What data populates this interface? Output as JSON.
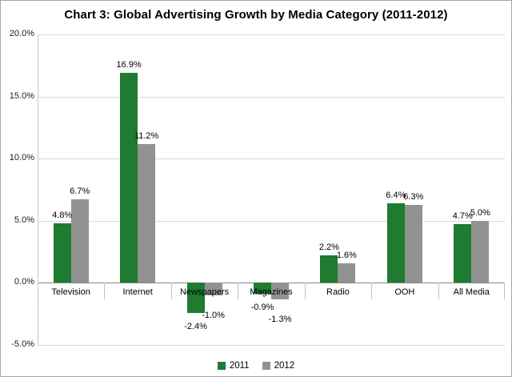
{
  "title": "Chart 3: Global Advertising Growth by Media Category (2011-2012)",
  "chart_data": {
    "type": "bar",
    "title": "Chart 3: Global Advertising Growth by Media Category (2011-2012)",
    "categories": [
      "Television",
      "Internet",
      "Newspapers",
      "Magazines",
      "Radio",
      "OOH",
      "All Media"
    ],
    "series": [
      {
        "name": "2011",
        "color": "#1e7b2f",
        "values": [
          4.8,
          16.9,
          -2.4,
          -0.9,
          2.2,
          6.4,
          4.7
        ]
      },
      {
        "name": "2012",
        "color": "#929292",
        "values": [
          6.7,
          11.2,
          -1.0,
          -1.3,
          1.6,
          6.3,
          5.0
        ]
      }
    ],
    "y_ticks": [
      "20.0%",
      "15.0%",
      "10.0%",
      "5.0%",
      "0.0%",
      "-5.0%"
    ],
    "ylim": [
      -5,
      20
    ],
    "grid": true,
    "legend_position": "bottom",
    "xlabel": "",
    "ylabel": "",
    "colors": {
      "grid": "#d9d9d9",
      "zero_line": "#878787",
      "series_2011": "#1e7b2f",
      "series_2012": "#929292"
    }
  }
}
